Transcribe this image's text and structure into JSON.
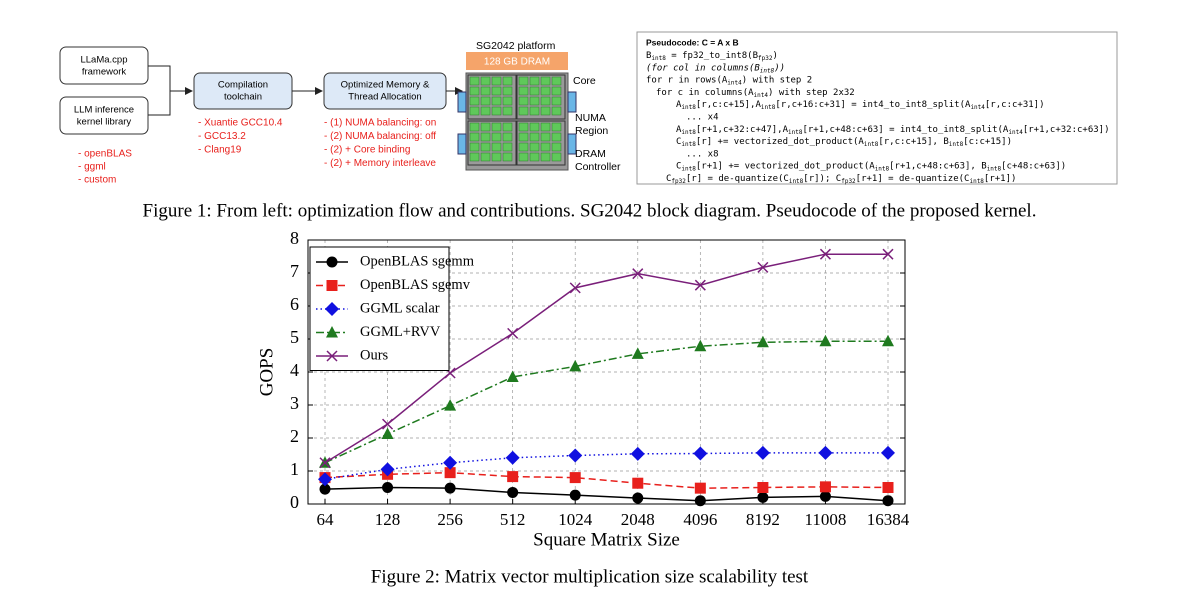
{
  "figure1": {
    "diagram": {
      "framework_box": [
        "LLaMa.cpp",
        "framework"
      ],
      "kernel_box": [
        "LLM inference",
        "kernel library"
      ],
      "kernel_items": [
        "- openBLAS",
        "- ggml",
        "- custom"
      ],
      "compilation_box": [
        "Compilation",
        "toolchain"
      ],
      "compilation_items": [
        "- Xuantie GCC10.4",
        "- GCC13.2",
        "- Clang19"
      ],
      "memory_box": [
        "Optimized Memory &",
        "Thread Allocation"
      ],
      "memory_items": [
        "- (1) NUMA balancing: on",
        "- (2) NUMA balancing: off",
        "- (2) + Core binding",
        "- (2) + Memory interleave"
      ],
      "platform_title": "SG2042 platform",
      "dram": "128 GB DRAM",
      "core_label": "Core",
      "numa_label": [
        "NUMA",
        "Region"
      ],
      "controller_label": [
        "DRAM",
        "Controller"
      ]
    },
    "pseudocode": {
      "header": "Pseudocode: C = A x B",
      "lines": [
        [
          "B",
          "int8",
          " = fp32_to_int8(B",
          "fp32",
          ")"
        ],
        [
          "(for col in columns(B",
          "int8",
          "))"
        ],
        [
          "for r in rows(A",
          "int4",
          ") with step 2"
        ],
        [
          "for c in columns(A",
          "int4",
          ") with step 2x32"
        ],
        [
          "A",
          "int8",
          "[r,c:c+15],A",
          "int8",
          "[r,c+16:c+31] = int4_to_int8_split(A",
          "int4",
          "[r,c:c+31])"
        ],
        [
          "... x4"
        ],
        [
          "A",
          "int8",
          "[r+1,c+32:c+47],A",
          "int8",
          "[r+1,c+48:c+63] = int4_to_int8_split(A",
          "int4",
          "[r+1,c+32:c+63])"
        ],
        [
          "C",
          "int8",
          "[r] += vectorized_dot_product(A",
          "int8",
          "[r,c:c+15], B",
          "int8",
          "[c:c+15])"
        ],
        [
          "... x8"
        ],
        [
          "C",
          "int8",
          "[r+1] += vectorized_dot_product(A",
          "int8",
          "[r+1,c+48:c+63], B",
          "int8",
          "[c+48:c+63])"
        ],
        [
          "C",
          "fp32",
          "[r] = de-quantize(C",
          "int8",
          "[r]); C",
          "fp32",
          "[r+1] = de-quantize(C",
          "int8",
          "[r+1])"
        ]
      ]
    },
    "caption": "Figure 1: From left: optimization flow and contributions. SG2042 block diagram. Pseudocode of the proposed kernel."
  },
  "chart_data": {
    "type": "line",
    "x_label": "Square Matrix Size",
    "y_label": "GOPS",
    "categories": [
      "64",
      "128",
      "256",
      "512",
      "1024",
      "2048",
      "4096",
      "8192",
      "11008",
      "16384"
    ],
    "series": [
      {
        "name": "OpenBLAS sgemm",
        "color": "#000000",
        "dash": "solid",
        "marker": "circle",
        "values": [
          0.45,
          0.5,
          0.48,
          0.35,
          0.27,
          0.18,
          0.1,
          0.2,
          0.23,
          0.1
        ]
      },
      {
        "name": "OpenBLAS sgemv",
        "color": "#e8201c",
        "dash": "dashed",
        "marker": "square",
        "values": [
          0.8,
          0.9,
          0.95,
          0.83,
          0.8,
          0.63,
          0.48,
          0.5,
          0.52,
          0.5
        ]
      },
      {
        "name": "GGML scalar",
        "color": "#1010e0",
        "dash": "dotted",
        "marker": "diamond",
        "values": [
          0.75,
          1.05,
          1.25,
          1.4,
          1.47,
          1.52,
          1.53,
          1.55,
          1.55,
          1.55
        ]
      },
      {
        "name": "GGML+RVV",
        "color": "#1f7a1f",
        "dash": "dashdot",
        "marker": "triangle",
        "values": [
          1.25,
          2.12,
          2.98,
          3.85,
          4.17,
          4.55,
          4.78,
          4.9,
          4.93,
          4.93
        ]
      },
      {
        "name": "Ours",
        "color": "#7a1f7a",
        "dash": "solid",
        "marker": "x",
        "values": [
          1.25,
          2.42,
          3.97,
          5.17,
          6.55,
          6.98,
          6.63,
          7.17,
          7.57,
          7.57
        ]
      }
    ],
    "ylim": [
      0,
      8
    ],
    "yticks": [
      0,
      1,
      2,
      3,
      4,
      5,
      6,
      7,
      8
    ],
    "grid": true,
    "legend": "upper left"
  },
  "figure2": {
    "caption": "Figure 2: Matrix vector multiplication size scalability test"
  }
}
